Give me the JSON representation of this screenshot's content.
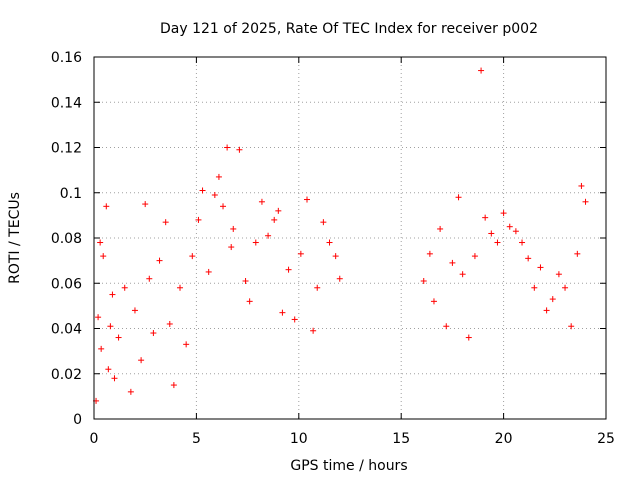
{
  "chart_data": {
    "type": "scatter",
    "title": "Day 121 of 2025, Rate Of TEC Index for receiver p002",
    "xlabel": "GPS time / hours",
    "ylabel": "ROTI / TECUs",
    "xlim": [
      0,
      25
    ],
    "ylim": [
      0,
      0.16
    ],
    "xticks": [
      "0",
      "5",
      "10",
      "15",
      "20",
      "25"
    ],
    "yticks": [
      "0",
      "0.02",
      "0.04",
      "0.06",
      "0.08",
      "0.1",
      "0.12",
      "0.14",
      "0.16"
    ],
    "grid": true,
    "marker": "+",
    "color": "#ff0000",
    "series": [
      {
        "x": [
          0.1,
          0.2,
          0.3,
          0.35,
          0.45,
          0.6,
          0.7,
          0.8,
          0.9,
          1.0,
          1.2,
          1.5,
          1.8,
          2.0,
          2.3,
          2.5,
          2.7,
          2.9,
          3.2,
          3.5,
          3.7,
          3.9,
          4.2,
          4.5,
          4.8,
          5.1,
          5.3,
          5.6,
          5.9,
          6.1,
          6.3,
          6.5,
          6.7,
          6.8,
          7.1,
          7.4,
          7.6,
          7.9,
          8.2,
          8.5,
          8.8,
          9.0,
          9.2,
          9.5,
          9.8,
          10.1,
          10.4,
          10.7,
          10.9,
          11.2,
          11.5,
          11.8,
          12.0,
          16.1,
          16.4,
          16.6,
          16.9,
          17.2,
          17.5,
          17.8,
          18.0,
          18.3,
          18.6,
          18.9,
          19.1,
          19.4,
          19.7,
          20.0,
          20.3,
          20.6,
          20.9,
          21.2,
          21.5,
          21.8,
          22.1,
          22.4,
          22.7,
          23.0,
          23.3,
          23.6,
          23.8,
          24.0
        ],
        "y": [
          0.008,
          0.045,
          0.078,
          0.031,
          0.072,
          0.094,
          0.022,
          0.041,
          0.055,
          0.018,
          0.036,
          0.058,
          0.012,
          0.048,
          0.026,
          0.095,
          0.062,
          0.038,
          0.07,
          0.087,
          0.042,
          0.015,
          0.058,
          0.033,
          0.072,
          0.088,
          0.101,
          0.065,
          0.099,
          0.107,
          0.094,
          0.12,
          0.076,
          0.084,
          0.119,
          0.061,
          0.052,
          0.078,
          0.096,
          0.081,
          0.088,
          0.092,
          0.047,
          0.066,
          0.044,
          0.073,
          0.097,
          0.039,
          0.058,
          0.087,
          0.078,
          0.072,
          0.062,
          0.061,
          0.073,
          0.052,
          0.084,
          0.041,
          0.069,
          0.098,
          0.064,
          0.036,
          0.072,
          0.154,
          0.089,
          0.082,
          0.078,
          0.091,
          0.085,
          0.083,
          0.078,
          0.071,
          0.058,
          0.067,
          0.048,
          0.053,
          0.064,
          0.058,
          0.041,
          0.073,
          0.103,
          0.096
        ]
      }
    ]
  }
}
